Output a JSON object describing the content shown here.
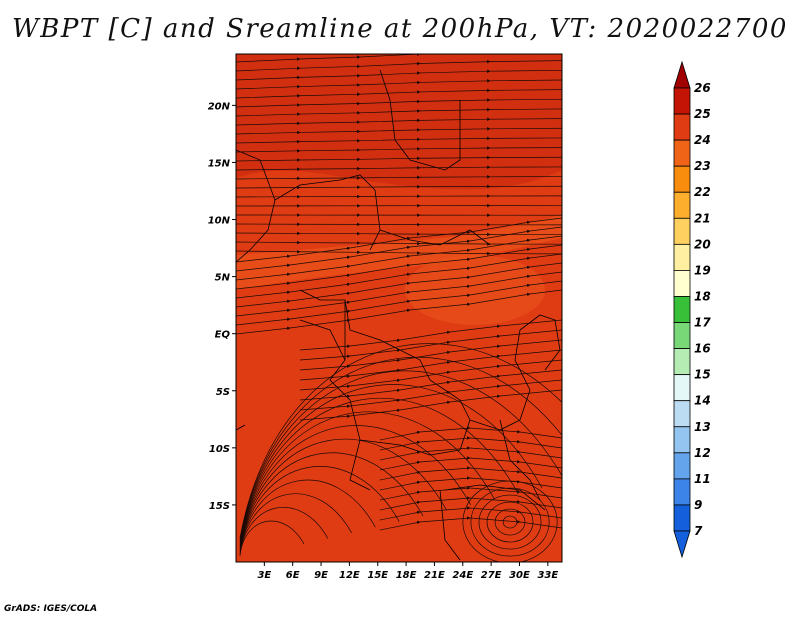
{
  "title": "WBPT [C] and Sreamline at 200hPa, VT: 2020022700",
  "credit": "GrADS: IGES/COLA",
  "map": {
    "lon_range": [
      0,
      34.5
    ],
    "lat_range": [
      -20,
      24.5
    ],
    "lon_ticks": [
      {
        "value": 3,
        "label": "3E"
      },
      {
        "value": 6,
        "label": "6E"
      },
      {
        "value": 9,
        "label": "9E"
      },
      {
        "value": 12,
        "label": "12E"
      },
      {
        "value": 15,
        "label": "15E"
      },
      {
        "value": 18,
        "label": "18E"
      },
      {
        "value": 21,
        "label": "21E"
      },
      {
        "value": 24,
        "label": "24E"
      },
      {
        "value": 27,
        "label": "27E"
      },
      {
        "value": 30,
        "label": "30E"
      },
      {
        "value": 33,
        "label": "33E"
      }
    ],
    "lat_ticks": [
      {
        "value": 20,
        "label": "20N"
      },
      {
        "value": 15,
        "label": "15N"
      },
      {
        "value": 10,
        "label": "10N"
      },
      {
        "value": 5,
        "label": "5N"
      },
      {
        "value": 0,
        "label": "EQ"
      },
      {
        "value": -5,
        "label": "5S"
      },
      {
        "value": -10,
        "label": "10S"
      },
      {
        "value": -15,
        "label": "15S"
      }
    ],
    "background_color": "#e03c14",
    "warm_band_color": "#cc2a10",
    "cool_patch_color": "#ee5a1c",
    "streamline_color": "#1a0a05",
    "border_color": "#000000"
  },
  "colorbar": {
    "levels": [
      {
        "label": "26",
        "color": "#a00000"
      },
      {
        "label": "25",
        "color": "#c41405"
      },
      {
        "label": "24",
        "color": "#e03c14"
      },
      {
        "label": "23",
        "color": "#f06418"
      },
      {
        "label": "22",
        "color": "#f88c0c"
      },
      {
        "label": "21",
        "color": "#fcae2c"
      },
      {
        "label": "20",
        "color": "#fdd060"
      },
      {
        "label": "19",
        "color": "#fef0a0"
      },
      {
        "label": "18",
        "color": "#ffffd0"
      },
      {
        "label": "17",
        "color": "#38c038"
      },
      {
        "label": "16",
        "color": "#78d878"
      },
      {
        "label": "15",
        "color": "#b4ecb4"
      },
      {
        "label": "14",
        "color": "#e4f8f8"
      },
      {
        "label": "13",
        "color": "#bcdcf4"
      },
      {
        "label": "12",
        "color": "#94c4f0"
      },
      {
        "label": "11",
        "color": "#64a4ec"
      },
      {
        "label": "9",
        "color": "#3c84e8"
      },
      {
        "label": "7",
        "color": "#1460dc"
      }
    ],
    "bottom_color": "#1460dc"
  }
}
